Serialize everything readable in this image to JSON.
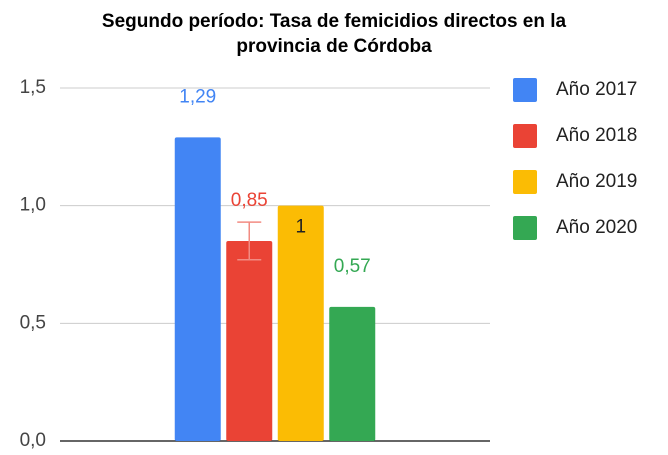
{
  "chart_data": {
    "type": "bar",
    "title": [
      "Segundo período: Tasa de femicidios directos en la",
      "provincia de Córdoba"
    ],
    "categories": [
      null
    ],
    "series": [
      {
        "name": "Año 2017",
        "color": "#4285f4",
        "values": [
          1.29
        ],
        "value_labels": [
          "1,29"
        ]
      },
      {
        "name": "Año 2018",
        "color": "#ea4335",
        "values": [
          0.85
        ],
        "value_labels": [
          "0,85"
        ],
        "errors": [
          0.08
        ]
      },
      {
        "name": "Año 2019",
        "color": "#fbbc04",
        "values": [
          1
        ],
        "label_inside": true
      },
      {
        "name": "Año 2020",
        "color": "#34a853",
        "values": [
          0.57
        ],
        "value_labels": [
          "0,57"
        ]
      }
    ],
    "ylim": [
      0,
      1.5
    ],
    "yticks": [
      {
        "value": 0,
        "label": "0,0"
      },
      {
        "value": 0.5,
        "label": "0,5"
      },
      {
        "value": 1,
        "label": "1,0"
      },
      {
        "value": 1.5,
        "label": "1,5"
      }
    ],
    "grid": true,
    "legend": "right"
  }
}
